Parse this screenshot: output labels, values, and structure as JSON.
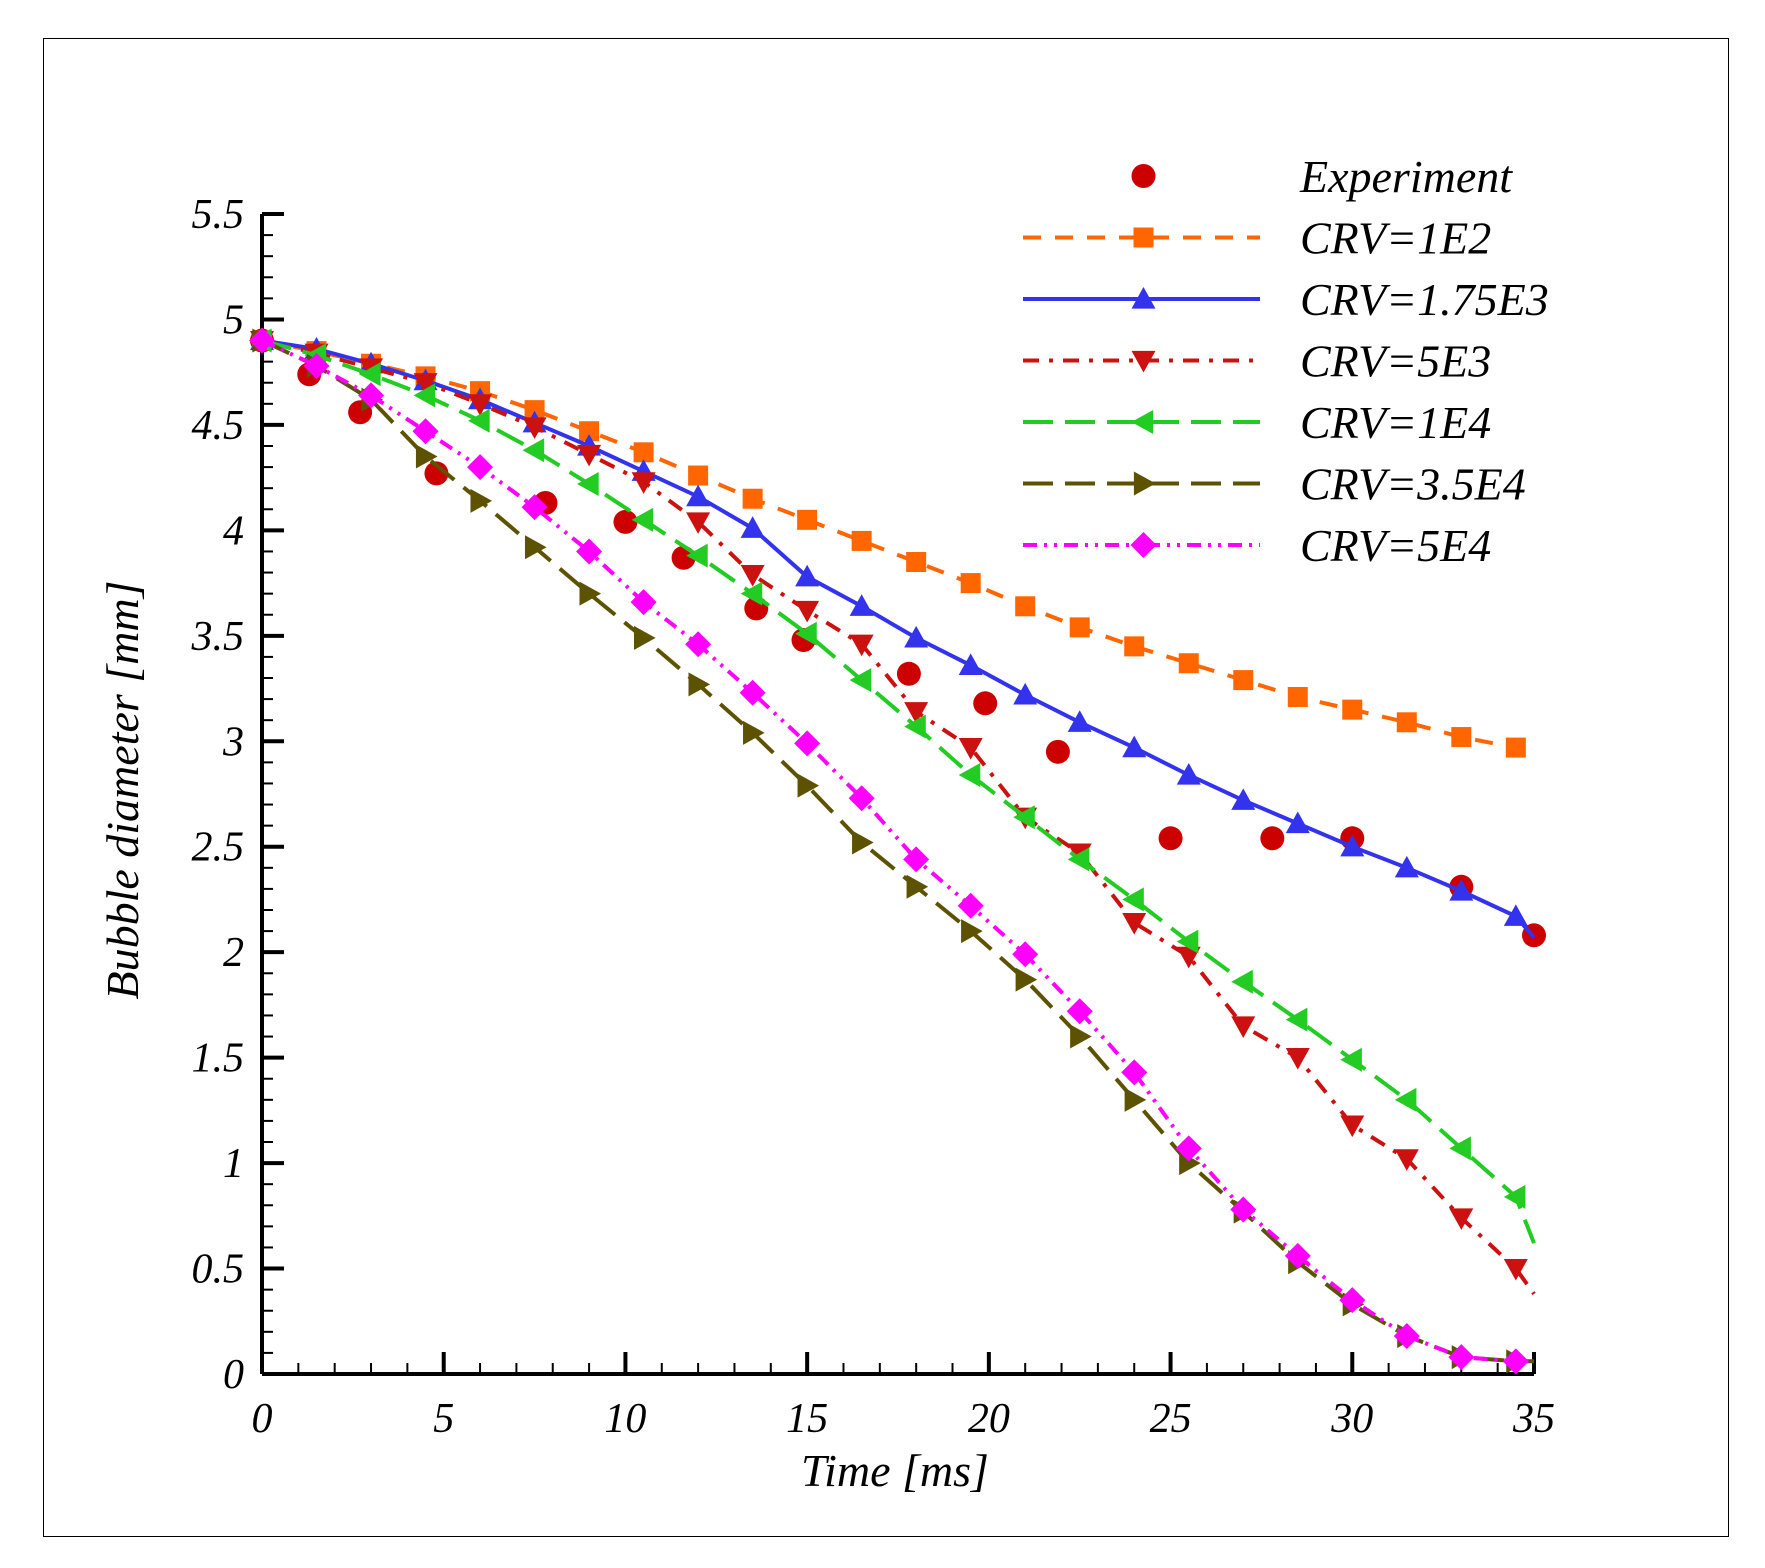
{
  "chart_data": {
    "type": "line",
    "title": "",
    "xlabel": "Time [ms]",
    "ylabel": "Bubble diameter [mm]",
    "xlim": [
      0,
      35
    ],
    "ylim": [
      0,
      5.5
    ],
    "xticks": [
      0,
      5,
      10,
      15,
      20,
      25,
      30,
      35
    ],
    "xtick_labels": [
      "0",
      "5",
      "10",
      "15",
      "20",
      "25",
      "30",
      "35"
    ],
    "yticks": [
      0,
      0.5,
      1,
      1.5,
      2,
      2.5,
      3,
      3.5,
      4,
      4.5,
      5,
      5.5
    ],
    "ytick_labels": [
      "0",
      "0.5",
      "1",
      "1.5",
      "2",
      "2.5",
      "3",
      "3.5",
      "4",
      "4.5",
      "5",
      "5.5"
    ],
    "grid": false,
    "legend_position": "top-right",
    "series": [
      {
        "name": "Experiment",
        "color": "#cc0000",
        "line": "none",
        "marker": "circle",
        "x": [
          0,
          1.3,
          2.7,
          4.8,
          7.8,
          10.0,
          11.6,
          13.6,
          14.9,
          17.8,
          19.9,
          21.9,
          25.0,
          27.8,
          30.0,
          33.0,
          35.0
        ],
        "y": [
          4.9,
          4.74,
          4.56,
          4.27,
          4.13,
          4.04,
          3.87,
          3.63,
          3.48,
          3.32,
          3.18,
          2.95,
          2.54,
          2.54,
          2.54,
          2.31,
          2.08
        ]
      },
      {
        "name": "CRV=1E2",
        "color": "#ff6600",
        "line": "dash",
        "marker": "square",
        "x": [
          0,
          1.5,
          3.0,
          4.5,
          6.0,
          7.5,
          9.0,
          10.5,
          12.0,
          13.5,
          15.0,
          16.5,
          18.0,
          19.5,
          21.0,
          22.5,
          24.0,
          25.5,
          27.0,
          28.5,
          30.0,
          31.5,
          33.0,
          34.5,
          35.0
        ],
        "y": [
          4.9,
          4.85,
          4.79,
          4.73,
          4.66,
          4.57,
          4.47,
          4.37,
          4.26,
          4.15,
          4.05,
          3.95,
          3.85,
          3.75,
          3.64,
          3.54,
          3.45,
          3.37,
          3.29,
          3.21,
          3.15,
          3.09,
          3.02,
          2.97,
          2.94
        ]
      },
      {
        "name": "CRV=1.75E3",
        "color": "#3333ee",
        "line": "solid",
        "marker": "triangle-up",
        "x": [
          0,
          1.5,
          3.0,
          4.5,
          6.0,
          7.5,
          9.0,
          10.5,
          12.0,
          13.5,
          15.0,
          16.5,
          18.0,
          19.5,
          21.0,
          22.5,
          24.0,
          25.5,
          27.0,
          28.5,
          30.0,
          31.5,
          33.0,
          34.5,
          35.0
        ],
        "y": [
          4.9,
          4.86,
          4.79,
          4.71,
          4.62,
          4.51,
          4.4,
          4.28,
          4.16,
          4.01,
          3.78,
          3.64,
          3.49,
          3.36,
          3.22,
          3.09,
          2.97,
          2.84,
          2.72,
          2.61,
          2.5,
          2.4,
          2.29,
          2.17,
          2.07
        ]
      },
      {
        "name": "CRV=5E3",
        "color": "#cc1111",
        "line": "dashdot",
        "marker": "triangle-down",
        "x": [
          0,
          1.5,
          3.0,
          4.5,
          6.0,
          7.5,
          9.0,
          10.5,
          12.0,
          13.5,
          15.0,
          16.5,
          18.0,
          19.5,
          21.0,
          22.5,
          24.0,
          25.5,
          27.0,
          28.5,
          30.0,
          31.5,
          33.0,
          34.5,
          35.0
        ],
        "y": [
          4.9,
          4.84,
          4.77,
          4.7,
          4.6,
          4.49,
          4.36,
          4.23,
          4.04,
          3.79,
          3.62,
          3.46,
          3.14,
          2.97,
          2.64,
          2.47,
          2.14,
          1.98,
          1.65,
          1.5,
          1.18,
          1.02,
          0.74,
          0.5,
          0.38
        ]
      },
      {
        "name": "CRV=1E4",
        "color": "#22cc22",
        "line": "longdash",
        "marker": "triangle-left",
        "x": [
          0,
          1.5,
          3.0,
          4.5,
          6.0,
          7.5,
          9.0,
          10.5,
          12.0,
          13.5,
          15.0,
          16.5,
          18.0,
          19.5,
          21.0,
          22.5,
          24.0,
          25.5,
          27.0,
          28.5,
          30.0,
          31.5,
          33.0,
          34.5,
          35.0
        ],
        "y": [
          4.9,
          4.83,
          4.74,
          4.64,
          4.52,
          4.38,
          4.22,
          4.05,
          3.88,
          3.7,
          3.51,
          3.29,
          3.07,
          2.84,
          2.64,
          2.44,
          2.25,
          2.05,
          1.86,
          1.68,
          1.49,
          1.3,
          1.07,
          0.84,
          0.62
        ]
      },
      {
        "name": "CRV=3.5E4",
        "color": "#5c5200",
        "line": "longdash",
        "marker": "triangle-right",
        "x": [
          0,
          1.5,
          3.0,
          4.5,
          6.0,
          7.5,
          9.0,
          10.5,
          12.0,
          13.5,
          15.0,
          16.5,
          18.0,
          19.5,
          21.0,
          22.5,
          24.0,
          25.5,
          27.0,
          28.5,
          30.0,
          31.5,
          33.0,
          34.5,
          35.0
        ],
        "y": [
          4.9,
          4.78,
          4.62,
          4.35,
          4.14,
          3.92,
          3.7,
          3.49,
          3.27,
          3.04,
          2.79,
          2.52,
          2.31,
          2.1,
          1.87,
          1.6,
          1.3,
          1.0,
          0.77,
          0.53,
          0.33,
          0.18,
          0.08,
          0.06,
          0.06
        ]
      },
      {
        "name": "CRV=5E4",
        "color": "#ff00ff",
        "line": "dashdotdot",
        "marker": "diamond",
        "x": [
          0,
          1.5,
          3.0,
          4.5,
          6.0,
          7.5,
          9.0,
          10.5,
          12.0,
          13.5,
          15.0,
          16.5,
          18.0,
          19.5,
          21.0,
          22.5,
          24.0,
          25.5,
          27.0,
          28.5,
          30.0,
          31.5,
          33.0,
          34.5,
          35.0
        ],
        "y": [
          4.9,
          4.78,
          4.64,
          4.47,
          4.3,
          4.11,
          3.9,
          3.66,
          3.46,
          3.23,
          2.99,
          2.73,
          2.44,
          2.22,
          1.99,
          1.72,
          1.43,
          1.07,
          0.78,
          0.56,
          0.35,
          0.18,
          0.08,
          0.06,
          0.06
        ]
      }
    ]
  }
}
